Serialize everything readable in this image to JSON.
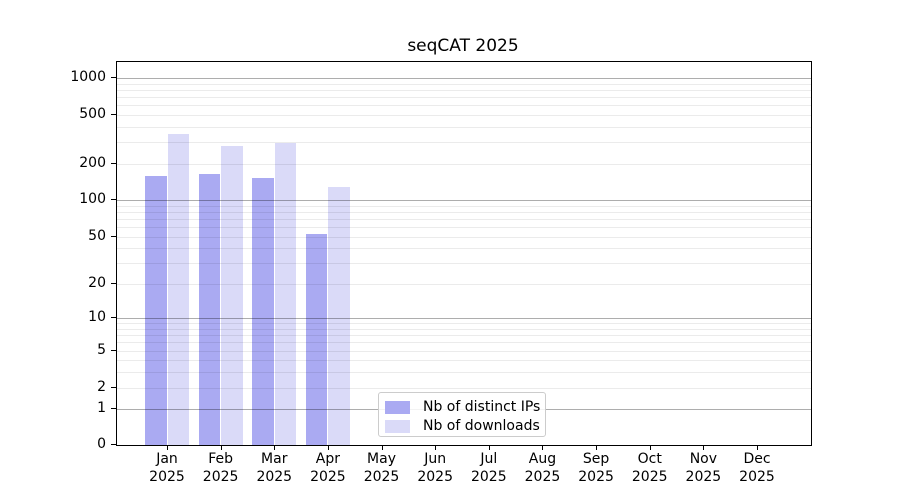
{
  "chart_data": {
    "type": "bar",
    "title": "seqCAT 2025",
    "categories": [
      "Jan",
      "Feb",
      "Mar",
      "Apr",
      "May",
      "Jun",
      "Jul",
      "Aug",
      "Sep",
      "Oct",
      "Nov",
      "Dec"
    ],
    "year_label": "2025",
    "series": [
      {
        "name": "Nb of distinct IPs",
        "color": "#aaaaf2",
        "values": [
          160,
          165,
          153,
          53,
          0,
          0,
          0,
          0,
          0,
          0,
          0,
          0
        ]
      },
      {
        "name": "Nb of downloads",
        "color": "#dadaf8",
        "values": [
          350,
          280,
          295,
          130,
          0,
          0,
          0,
          0,
          0,
          0,
          0,
          0
        ]
      }
    ],
    "yticks": [
      0,
      1,
      2,
      5,
      10,
      20,
      50,
      100,
      200,
      500,
      1000
    ],
    "yminor": [
      2,
      3,
      4,
      5,
      6,
      7,
      8,
      9,
      20,
      30,
      40,
      50,
      60,
      70,
      80,
      90,
      200,
      300,
      400,
      500,
      600,
      700,
      800,
      900
    ],
    "ymajor": [
      1,
      10,
      100,
      1000
    ],
    "yscale": "log1p",
    "ylim": [
      0,
      1360
    ],
    "xlabel": "",
    "ylabel": "",
    "grid": "on",
    "legend_position": "lower-center-inside"
  }
}
